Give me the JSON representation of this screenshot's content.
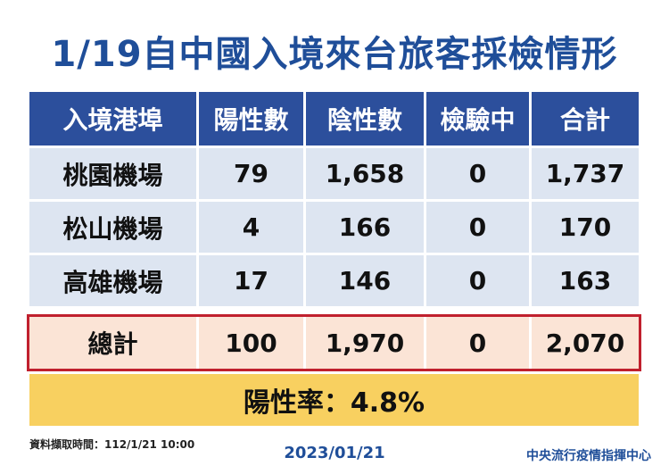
{
  "title": "1/19自中國入境來台旅客採檢情形",
  "table": {
    "headers": [
      "入境港埠",
      "陽性數",
      "陰性數",
      "檢驗中",
      "合計"
    ],
    "rows": [
      [
        "桃園機場",
        "79",
        "1,658",
        "0",
        "1,737"
      ],
      [
        "松山機場",
        "4",
        "166",
        "0",
        "170"
      ],
      [
        "高雄機場",
        "17",
        "146",
        "0",
        "163"
      ]
    ],
    "total": [
      "總計",
      "100",
      "1,970",
      "0",
      "2,070"
    ]
  },
  "positive_rate": "陽性率：4.8%",
  "footer": {
    "source_time": "資料擷取時間：112/1/21 10:00",
    "date": "2023/01/21",
    "agency": "中央流行疫情指揮中心"
  },
  "colors": {
    "title": "#1f4e99",
    "header_bg": "#2c4f9c",
    "row_bg": "#dde5f1",
    "total_bg": "#fbe4d6",
    "total_border": "#c0202e",
    "rate_bg": "#f8d060"
  }
}
